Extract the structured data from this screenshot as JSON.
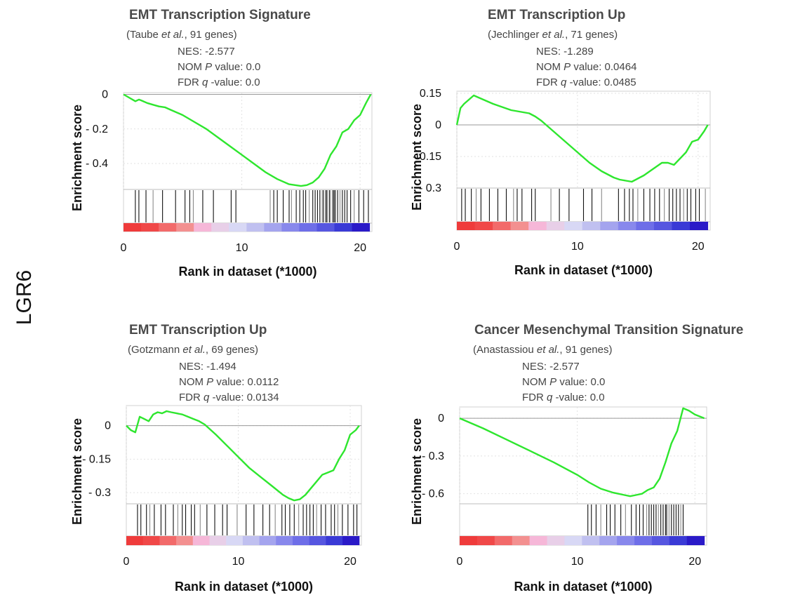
{
  "figure": {
    "side_label": "LGR6"
  },
  "chart_data": [
    {
      "type": "line",
      "title": "EMT Transcription Signature",
      "subtitle_pre": "(Taube ",
      "subtitle_italic": "et al.",
      "subtitle_post": ", 91 genes)",
      "nes_line": "NES: -2.577",
      "nom_pre": "NOM ",
      "nom_italic": "P",
      "nom_post": " value: 0.0",
      "fdr_pre": "FDR ",
      "fdr_italic": "q",
      "fdr_post": " -value: 0.0",
      "xlabel": "Rank in dataset (*1000)",
      "ylabel": "Enrichment score",
      "xlim": [
        0,
        21
      ],
      "ylim": [
        -0.55,
        0.01
      ],
      "xticks": [
        0,
        10,
        20
      ],
      "xtick_labels": [
        "0",
        "10",
        "20"
      ],
      "yticks": [
        0,
        -0.2,
        -0.4
      ],
      "ytick_labels": [
        "0",
        "- 0.2",
        "- 0.4"
      ],
      "x": [
        0,
        0.5,
        1.0,
        1.3,
        1.5,
        2.0,
        2.5,
        3.0,
        3.5,
        4.0,
        5.0,
        6.0,
        7.0,
        8.0,
        9.0,
        10.0,
        11.0,
        12.0,
        13.0,
        14.0,
        14.5,
        15.0,
        15.5,
        16.0,
        16.5,
        17.0,
        17.5,
        18.0,
        18.5,
        19.0,
        19.5,
        20.0,
        20.5,
        20.9
      ],
      "y": [
        0,
        -0.02,
        -0.04,
        -0.03,
        -0.035,
        -0.05,
        -0.06,
        -0.07,
        -0.075,
        -0.09,
        -0.12,
        -0.16,
        -0.2,
        -0.25,
        -0.3,
        -0.35,
        -0.4,
        -0.45,
        -0.49,
        -0.52,
        -0.525,
        -0.53,
        -0.525,
        -0.51,
        -0.48,
        -0.43,
        -0.35,
        -0.3,
        -0.22,
        -0.2,
        -0.15,
        -0.12,
        -0.05,
        0
      ],
      "hits": [
        1.0,
        1.3,
        1.9,
        2.5,
        3.3,
        4.4,
        5.2,
        5.6,
        5.9,
        6.7,
        7.6,
        9.1,
        9.5,
        12.4,
        12.7,
        13.0,
        13.5,
        14.0,
        14.2,
        14.6,
        14.9,
        15.2,
        15.4,
        15.7,
        16.0,
        16.2,
        16.4,
        16.6,
        16.8,
        16.9,
        17.1,
        17.2,
        17.4,
        17.5,
        17.7,
        17.8,
        17.9,
        18.1,
        18.3,
        18.5,
        18.7,
        18.9,
        19.2,
        19.5,
        19.9,
        20.3,
        20.7
      ],
      "bar_colors": [
        "#ef3b3b",
        "#f04848",
        "#f26a6a",
        "#f39090",
        "#f6b7d8",
        "#e8cfe8",
        "#d8d8f5",
        "#c0c0f0",
        "#a4a4ee",
        "#8888ec",
        "#6e6ee8",
        "#5656e0",
        "#3a3ad6",
        "#2a1ac8"
      ],
      "line_color": "#2ee62e"
    },
    {
      "type": "line",
      "title": "EMT Transcription Up",
      "subtitle_pre": "(Jechlinger ",
      "subtitle_italic": "et al.",
      "subtitle_post": ", 71 genes)",
      "nes_line": "NES: -1.289",
      "nom_pre": "NOM ",
      "nom_italic": "P",
      "nom_post": " value: 0.0464",
      "fdr_pre": "FDR ",
      "fdr_italic": "q",
      "fdr_post": " -value: 0.0485",
      "xlabel": "Rank in dataset (*1000)",
      "ylabel": "Enrichment score",
      "xlim": [
        0,
        21
      ],
      "ylim": [
        -0.3,
        0.16
      ],
      "xticks": [
        0,
        10,
        20
      ],
      "xtick_labels": [
        "0",
        "10",
        "20"
      ],
      "yticks": [
        0.15,
        0,
        -0.15,
        -0.3
      ],
      "ytick_labels": [
        "0.15",
        "0",
        "- 0.15",
        "- 0.3"
      ],
      "x": [
        0,
        0.3,
        0.6,
        1.0,
        1.4,
        1.8,
        2.2,
        2.6,
        3.0,
        3.5,
        4.0,
        4.5,
        5.0,
        5.5,
        6.0,
        6.5,
        7.0,
        8.0,
        9.0,
        10.0,
        11.0,
        12.0,
        13.0,
        13.5,
        14.0,
        14.5,
        15.0,
        15.5,
        16.0,
        16.5,
        17.0,
        17.5,
        18.0,
        18.5,
        19.0,
        19.5,
        20.0,
        20.5,
        20.8
      ],
      "y": [
        0,
        0.08,
        0.1,
        0.12,
        0.14,
        0.13,
        0.12,
        0.11,
        0.1,
        0.09,
        0.08,
        0.07,
        0.065,
        0.06,
        0.055,
        0.04,
        0.02,
        -0.03,
        -0.08,
        -0.13,
        -0.18,
        -0.22,
        -0.25,
        -0.26,
        -0.265,
        -0.27,
        -0.255,
        -0.24,
        -0.22,
        -0.2,
        -0.18,
        -0.18,
        -0.19,
        -0.16,
        -0.13,
        -0.08,
        -0.07,
        -0.03,
        0
      ],
      "hits": [
        0.4,
        0.7,
        1.2,
        1.6,
        2.0,
        2.7,
        3.4,
        4.1,
        4.7,
        5.0,
        5.4,
        6.2,
        6.5,
        7.8,
        8.5,
        9.3,
        10.5,
        11.2,
        12.0,
        13.4,
        13.9,
        14.3,
        14.6,
        15.0,
        15.5,
        16.0,
        16.4,
        16.8,
        17.2,
        17.6,
        17.9,
        18.2,
        18.5,
        18.8,
        19.1,
        19.4,
        19.8,
        20.1,
        20.6
      ],
      "bar_colors": [
        "#ef3b3b",
        "#f04848",
        "#f26a6a",
        "#f39090",
        "#f6b7d8",
        "#e8cfe8",
        "#d8d8f5",
        "#c0c0f0",
        "#a4a4ee",
        "#8888ec",
        "#6e6ee8",
        "#5656e0",
        "#3a3ad6",
        "#2a1ac8"
      ],
      "line_color": "#2ee62e"
    },
    {
      "type": "line",
      "title": "EMT Transcription Up",
      "subtitle_pre": "(Gotzmann ",
      "subtitle_italic": "et al.",
      "subtitle_post": ", 69 genes)",
      "nes_line": "NES: -1.494",
      "nom_pre": "NOM ",
      "nom_italic": "P",
      "nom_post": " value: 0.0112",
      "fdr_pre": "FDR ",
      "fdr_italic": "q",
      "fdr_post": " -value: 0.0134",
      "xlabel": "Rank in dataset (*1000)",
      "ylabel": "Enrichment score",
      "xlim": [
        0,
        21
      ],
      "ylim": [
        -0.35,
        0.09
      ],
      "xticks": [
        0,
        10,
        20
      ],
      "xtick_labels": [
        "0",
        "10",
        "20"
      ],
      "yticks": [
        0,
        -0.15,
        -0.3
      ],
      "ytick_labels": [
        "0",
        "- 0.15",
        "- 0.3"
      ],
      "x": [
        0,
        0.4,
        0.8,
        1.2,
        1.6,
        2.0,
        2.4,
        2.8,
        3.2,
        3.6,
        4.0,
        4.5,
        5.0,
        5.5,
        6.0,
        6.5,
        7.0,
        8.0,
        9.0,
        10.0,
        11.0,
        12.0,
        13.0,
        14.0,
        14.5,
        15.0,
        15.5,
        16.0,
        16.5,
        17.0,
        17.5,
        18.0,
        18.5,
        19.0,
        19.5,
        20.0,
        20.5,
        20.8
      ],
      "y": [
        0,
        -0.02,
        -0.03,
        0.04,
        0.03,
        0.02,
        0.05,
        0.06,
        0.055,
        0.065,
        0.06,
        0.055,
        0.05,
        0.04,
        0.03,
        0.02,
        0.005,
        -0.04,
        -0.09,
        -0.14,
        -0.19,
        -0.23,
        -0.27,
        -0.31,
        -0.325,
        -0.335,
        -0.33,
        -0.31,
        -0.28,
        -0.25,
        -0.22,
        -0.21,
        -0.2,
        -0.15,
        -0.11,
        -0.04,
        -0.02,
        0
      ],
      "hits": [
        1.0,
        1.3,
        1.8,
        2.1,
        2.5,
        3.1,
        3.5,
        4.2,
        4.6,
        5.0,
        5.3,
        5.8,
        6.1,
        6.6,
        7.2,
        7.9,
        8.6,
        9.0,
        9.9,
        10.7,
        11.4,
        12.2,
        12.8,
        13.3,
        13.9,
        14.2,
        14.6,
        15.0,
        15.4,
        15.8,
        16.1,
        16.4,
        16.7,
        17.0,
        17.4,
        17.8,
        18.3,
        18.6,
        18.9,
        19.3,
        19.8,
        20.3,
        20.6
      ],
      "bar_colors": [
        "#ef3b3b",
        "#f04848",
        "#f26a6a",
        "#f39090",
        "#f6b7d8",
        "#e8cfe8",
        "#d8d8f5",
        "#c0c0f0",
        "#a4a4ee",
        "#8888ec",
        "#6e6ee8",
        "#5656e0",
        "#3a3ad6",
        "#2a1ac8"
      ],
      "line_color": "#2ee62e"
    },
    {
      "type": "line",
      "title": "Cancer Mesenchymal Transition Signature",
      "subtitle_pre": "(Anastassiou ",
      "subtitle_italic": "et al.",
      "subtitle_post": ", 91 genes)",
      "nes_line": "NES: -2.577",
      "nom_pre": "NOM ",
      "nom_italic": "P",
      "nom_post": " value: 0.0",
      "fdr_pre": "FDR ",
      "fdr_italic": "q",
      "fdr_post": " -value: 0.0",
      "xlabel": "Rank in dataset (*1000)",
      "ylabel": "Enrichment score",
      "xlim": [
        0,
        21
      ],
      "ylim": [
        -0.68,
        0.09
      ],
      "xticks": [
        0,
        10,
        20
      ],
      "xtick_labels": [
        "0",
        "10",
        "20"
      ],
      "yticks": [
        0,
        -0.3,
        -0.6
      ],
      "ytick_labels": [
        "0",
        "- 0.3",
        "- 0.6"
      ],
      "x": [
        0,
        2,
        4,
        6,
        8,
        10,
        11,
        12,
        13,
        13.5,
        14,
        14.5,
        15,
        15.5,
        16,
        16.5,
        17,
        17.5,
        18,
        18.5,
        19,
        19.5,
        20,
        20.8
      ],
      "y": [
        0,
        -0.08,
        -0.17,
        -0.26,
        -0.35,
        -0.45,
        -0.51,
        -0.56,
        -0.59,
        -0.6,
        -0.61,
        -0.62,
        -0.61,
        -0.6,
        -0.57,
        -0.55,
        -0.48,
        -0.35,
        -0.2,
        -0.1,
        0.08,
        0.06,
        0.03,
        0
      ],
      "hits": [
        10.9,
        11.2,
        11.6,
        12.0,
        12.5,
        12.8,
        13.2,
        13.7,
        14.1,
        14.6,
        15.0,
        15.3,
        15.6,
        15.9,
        16.1,
        16.3,
        16.5,
        16.7,
        16.9,
        17.1,
        17.3,
        17.5,
        17.6,
        17.8,
        18.0,
        18.2,
        18.4,
        18.6,
        18.8,
        19.0
      ],
      "bar_colors": [
        "#ef3b3b",
        "#f04848",
        "#f26a6a",
        "#f39090",
        "#f6b7d8",
        "#e8cfe8",
        "#d8d8f5",
        "#c0c0f0",
        "#a4a4ee",
        "#8888ec",
        "#6e6ee8",
        "#5656e0",
        "#3a3ad6",
        "#2a1ac8"
      ],
      "line_color": "#2ee62e"
    }
  ]
}
